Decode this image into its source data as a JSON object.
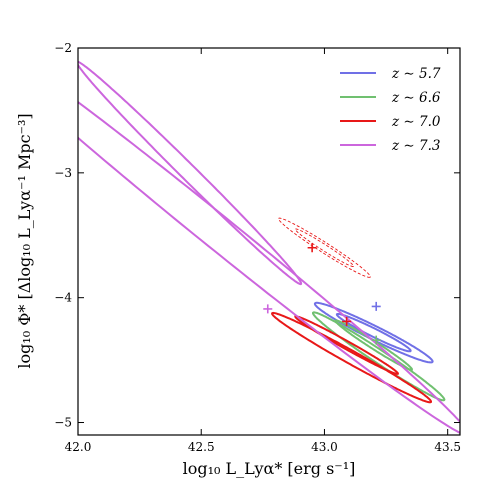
{
  "chart_data": {
    "type": "contour",
    "xlabel": "log₁₀ L_Lyα* [erg s⁻¹]",
    "ylabel": "log₁₀ Φ* [Δlog₁₀ L_Lyα⁻¹ Mpc⁻³]",
    "xlim": [
      42.0,
      43.55
    ],
    "ylim": [
      -5.1,
      -2.0
    ],
    "x_ticks": [
      42.0,
      42.5,
      43.0,
      43.5
    ],
    "x_tick_labels": [
      "42.0",
      "42.5",
      "43.0",
      "43.5"
    ],
    "y_ticks": [
      -5,
      -4,
      -3,
      -2
    ],
    "y_tick_labels": [
      "−5",
      "−4",
      "−3",
      "−2"
    ],
    "legend_position": "top-right",
    "series": [
      {
        "name": "z ∼ 5.7",
        "color": "#7070e6",
        "best_fit": {
          "x": 43.21,
          "y": -4.07
        },
        "contours": [
          {
            "cx": 43.2,
            "cy": -4.28,
            "a": 0.335,
            "b": 0.043,
            "angle_deg": 45,
            "dashed": false
          },
          {
            "cx": 43.2,
            "cy": -4.28,
            "a": 0.21,
            "b": 0.026,
            "angle_deg": 45,
            "dashed": false
          }
        ]
      },
      {
        "name": "z ∼ 6.6",
        "color": "#70c070",
        "best_fit": {
          "x": 43.21,
          "y": -4.34
        },
        "contours": [
          {
            "cx": 43.22,
            "cy": -4.47,
            "a": 0.44,
            "b": 0.038,
            "angle_deg": 53,
            "dashed": false
          },
          {
            "cx": 43.2,
            "cy": -4.38,
            "a": 0.25,
            "b": 0.022,
            "angle_deg": 52,
            "dashed": false
          }
        ]
      },
      {
        "name": "z ∼ 7.0",
        "color": "#e81818",
        "best_fit": {
          "x": 43.09,
          "y": -4.19
        },
        "contours": [
          {
            "cx": 43.11,
            "cy": -4.48,
            "a": 0.48,
            "b": 0.04,
            "angle_deg": 48,
            "dashed": false
          },
          {
            "cx": 43.09,
            "cy": -4.38,
            "a": 0.31,
            "b": 0.024,
            "angle_deg": 48,
            "dashed": false
          },
          {
            "cx": 43.0,
            "cy": -3.6,
            "a": 0.3,
            "b": 0.03,
            "angle_deg": 52,
            "dashed": true
          },
          {
            "cx": 43.0,
            "cy": -3.6,
            "a": 0.19,
            "b": 0.018,
            "angle_deg": 52,
            "dashed": true
          }
        ],
        "extra_marker": {
          "x": 42.95,
          "y": -3.6
        }
      },
      {
        "name": "z ∼ 7.3",
        "color": "#cc66dd",
        "best_fit": {
          "x": 42.77,
          "y": -4.09
        },
        "contours": [
          {
            "cx": 42.55,
            "cy": -3.45,
            "a": 1.95,
            "b": 0.09,
            "angle_deg": 58,
            "dashed": false
          },
          {
            "cx": 42.45,
            "cy": -3.0,
            "a": 1.0,
            "b": 0.04,
            "angle_deg": 63,
            "dashed": false
          }
        ]
      }
    ]
  }
}
